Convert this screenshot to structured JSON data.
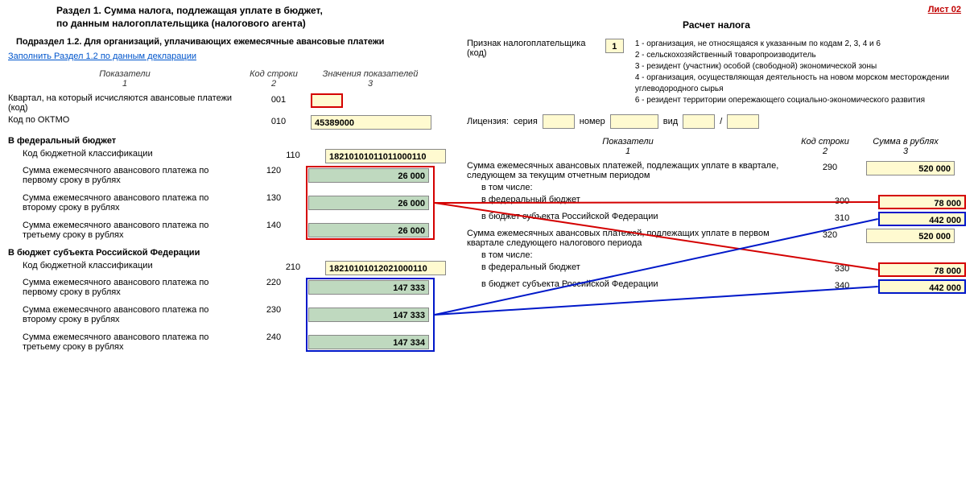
{
  "sheet_label": "Лист 02",
  "left": {
    "title1": "Раздел 1. Сумма налога, подлежащая уплате в бюджет,",
    "title2": "по данным налогоплательщика (налогового агента)",
    "subsection": "Подраздел 1.2. Для организаций, уплачивающих ежемесячные авансовые платежи",
    "link": "Заполнить Раздел 1.2 по данным декларации",
    "hdr": {
      "c1": "Показатели",
      "n1": "1",
      "c2": "Код строки",
      "n2": "2",
      "c3": "Значения показателей",
      "n3": "3"
    },
    "rows": {
      "quarter": {
        "label": "Квартал, на который исчисляются авансовые платежи (код)",
        "code": "001",
        "value": ""
      },
      "oktmo": {
        "label": "Код по ОКТМО",
        "code": "010",
        "value": "45389000"
      },
      "fed_hdr": "В федеральный бюджет",
      "fed_kbk": {
        "label": "Код бюджетной классификации",
        "code": "110",
        "value": "18210101011011000110"
      },
      "fed1": {
        "label": "Сумма ежемесячного авансового платежа по первому сроку в рублях",
        "code": "120",
        "value": "26 000"
      },
      "fed2": {
        "label": "Сумма ежемесячного авансового платежа по второму сроку в рублях",
        "code": "130",
        "value": "26 000"
      },
      "fed3": {
        "label": "Сумма ежемесячного авансового платежа по третьему сроку в рублях",
        "code": "140",
        "value": "26 000"
      },
      "sub_hdr": "В бюджет субъекта Российской Федерации",
      "sub_kbk": {
        "label": "Код бюджетной классификации",
        "code": "210",
        "value": "18210101012021000110"
      },
      "sub1": {
        "label": "Сумма ежемесячного авансового платежа по первому сроку в рублях",
        "code": "220",
        "value": "147 333"
      },
      "sub2": {
        "label": "Сумма ежемесячного авансового платежа по второму сроку в рублях",
        "code": "230",
        "value": "147 333"
      },
      "sub3": {
        "label": "Сумма ежемесячного авансового платежа по третьему сроку в рублях",
        "code": "240",
        "value": "147 334"
      }
    }
  },
  "right": {
    "title": "Расчет налога",
    "taxpayer_label": "Признак налогоплательщика (код)",
    "taxpayer_code": "1",
    "code_legend": [
      "1 - организация, не относящаяся к указанным по кодам 2, 3, 4 и 6",
      "2 - сельскохозяйственный товаропроизводитель",
      "3 - резидент (участник) особой (свободной) экономической зоны",
      "4 - организация, осуществляющая деятельность на новом морском месторождении углеводородного сырья",
      "6 - резидент территории опережающего социально-экономического развития"
    ],
    "license": {
      "label": "Лицензия:",
      "series": "серия",
      "number": "номер",
      "kind": "вид",
      "slash": "/"
    },
    "hdr": {
      "c1": "Показатели",
      "n1": "1",
      "c2": "Код строки",
      "n2": "2",
      "c3": "Сумма в рублях",
      "n3": "3"
    },
    "rows": {
      "r290": {
        "label": "Сумма ежемесячных авансовых платежей, подлежащих уплате в квартале, следующем за текущим отчетным периодом",
        "code": "290",
        "value": "520 000"
      },
      "incl": "в том числе:",
      "r300": {
        "label": "в федеральный бюджет",
        "code": "300",
        "value": "78 000"
      },
      "r310": {
        "label": "в бюджет субъекта Российской Федерации",
        "code": "310",
        "value": "442 000"
      },
      "r320": {
        "label": "Сумма ежемесячных авансовых платежей, подлежащих уплате в первом квартале следующего налогового периода",
        "code": "320",
        "value": "520 000"
      },
      "incl2": "в том числе:",
      "r330": {
        "label": "в федеральный бюджет",
        "code": "330",
        "value": "78 000"
      },
      "r340": {
        "label": "в бюджет субъекта Российской Федерации",
        "code": "340",
        "value": "442 000"
      }
    }
  },
  "lines": {
    "stroke_red": "#d40000",
    "stroke_blue": "#0018c9",
    "width": 2
  }
}
